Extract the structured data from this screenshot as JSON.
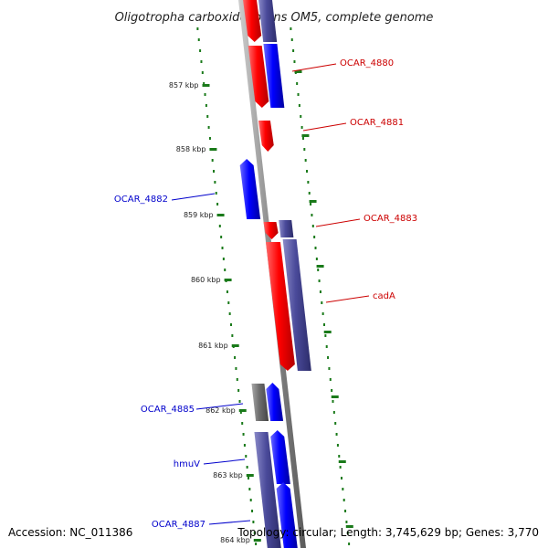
{
  "title": "Oligotropha carboxidovorans OM5, complete genome",
  "footer": {
    "accession": "Accession: NC_011386",
    "topology": "Topology: circular; Length: 3,745,629 bp; Genes: 3,770"
  },
  "colors": {
    "forward_gene": "#ff0000",
    "reverse_gene": "#0000ff",
    "reverse_purple": "#4a4a9a",
    "gray_gene": "#6e6e6e",
    "tick_green": "#1a7a1a",
    "backbone": "#888888",
    "label_red": "#cc0000",
    "label_blue": "#0000cc"
  },
  "ticks": [
    {
      "label": "857 kbp"
    },
    {
      "label": "858 kbp"
    },
    {
      "label": "859 kbp"
    },
    {
      "label": "860 kbp"
    },
    {
      "label": "861 kbp"
    },
    {
      "label": "862 kbp"
    },
    {
      "label": "863 kbp"
    },
    {
      "label": "864 kbp"
    }
  ],
  "genes": [
    {
      "name": "OCAR_4880",
      "color": "red"
    },
    {
      "name": "OCAR_4881",
      "color": "red"
    },
    {
      "name": "OCAR_4882",
      "color": "blue"
    },
    {
      "name": "OCAR_4883",
      "color": "red"
    },
    {
      "name": "cadA",
      "color": "red"
    },
    {
      "name": "OCAR_4885",
      "color": "blue"
    },
    {
      "name": "hmuV",
      "color": "blue"
    },
    {
      "name": "OCAR_4887",
      "color": "blue"
    }
  ]
}
